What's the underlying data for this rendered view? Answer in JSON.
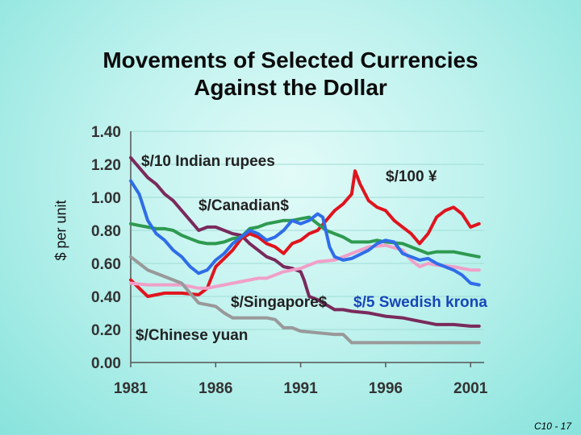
{
  "slide": {
    "title_line1": "Movements of Selected Currencies",
    "title_line2": "Against the Dollar",
    "footer": "C10 - 17"
  },
  "chart_data": {
    "type": "line",
    "ylabel": "$ per unit",
    "xlim": [
      1981,
      2001.8
    ],
    "ylim": [
      0.0,
      1.4
    ],
    "x_ticks": [
      "1981",
      "1986",
      "1991",
      "1996",
      "2001"
    ],
    "x_tick_values": [
      1981,
      1986,
      1991,
      1996,
      2001
    ],
    "y_ticks": [
      "0.00",
      "0.20",
      "0.40",
      "0.60",
      "0.80",
      "1.00",
      "1.20",
      "1.40"
    ],
    "y_tick_values": [
      0,
      0.2,
      0.4,
      0.6,
      0.8,
      1.0,
      1.2,
      1.4
    ],
    "grid": true,
    "series": [
      {
        "name": "$/10 Indian rupees",
        "color": "#7a2a5c",
        "x": [
          1981,
          1981.5,
          1982,
          1982.5,
          1983,
          1983.5,
          1984,
          1984.5,
          1985,
          1985.5,
          1986,
          1986.5,
          1987,
          1987.5,
          1988,
          1988.5,
          1989,
          1989.5,
          1990,
          1990.5,
          1991,
          1991.2,
          1991.5,
          1992,
          1993,
          1993.5,
          1994,
          1995,
          1995.5,
          1996,
          1997,
          1998,
          1998.5,
          1999,
          2000,
          2001,
          2001.5
        ],
        "y": [
          1.24,
          1.18,
          1.12,
          1.08,
          1.02,
          0.98,
          0.92,
          0.86,
          0.8,
          0.82,
          0.82,
          0.8,
          0.78,
          0.77,
          0.72,
          0.68,
          0.64,
          0.62,
          0.58,
          0.57,
          0.55,
          0.5,
          0.4,
          0.38,
          0.32,
          0.32,
          0.31,
          0.3,
          0.29,
          0.28,
          0.27,
          0.25,
          0.24,
          0.23,
          0.23,
          0.22,
          0.22
        ]
      },
      {
        "name": "$/100 ¥",
        "color": "#e0141e",
        "x": [
          1981,
          1981.5,
          1982,
          1983,
          1984,
          1985,
          1985.5,
          1986,
          1986.5,
          1987,
          1987.5,
          1988,
          1988.5,
          1989,
          1989.5,
          1990,
          1990.5,
          1991,
          1991.5,
          1992,
          1992.5,
          1993,
          1993.5,
          1994,
          1994.2,
          1994.5,
          1995,
          1995.5,
          1996,
          1996.5,
          1997,
          1997.5,
          1998,
          1998.5,
          1999,
          1999.5,
          2000,
          2000.5,
          2001,
          2001.5
        ],
        "y": [
          0.5,
          0.45,
          0.4,
          0.42,
          0.42,
          0.41,
          0.45,
          0.58,
          0.63,
          0.68,
          0.75,
          0.78,
          0.76,
          0.72,
          0.7,
          0.66,
          0.72,
          0.74,
          0.78,
          0.8,
          0.86,
          0.92,
          0.96,
          1.02,
          1.16,
          1.08,
          0.98,
          0.94,
          0.92,
          0.86,
          0.82,
          0.78,
          0.72,
          0.78,
          0.88,
          0.92,
          0.94,
          0.9,
          0.82,
          0.84
        ]
      },
      {
        "name": "$/Canadian$",
        "color": "#2e9a50",
        "x": [
          1981,
          1981.5,
          1982,
          1982.5,
          1983,
          1983.5,
          1984,
          1984.5,
          1985,
          1985.5,
          1986,
          1986.5,
          1987,
          1987.5,
          1988,
          1988.5,
          1989,
          1989.5,
          1990,
          1990.5,
          1991,
          1991.5,
          1992,
          1992.5,
          1993,
          1993.5,
          1994,
          1995,
          1995.5,
          1996,
          1997,
          1998,
          1998.5,
          1999,
          2000,
          2001,
          2001.5
        ],
        "y": [
          0.84,
          0.83,
          0.82,
          0.81,
          0.81,
          0.8,
          0.77,
          0.75,
          0.73,
          0.72,
          0.72,
          0.73,
          0.75,
          0.76,
          0.81,
          0.82,
          0.84,
          0.85,
          0.86,
          0.86,
          0.87,
          0.88,
          0.84,
          0.8,
          0.78,
          0.76,
          0.73,
          0.73,
          0.74,
          0.73,
          0.72,
          0.68,
          0.66,
          0.67,
          0.67,
          0.65,
          0.64
        ]
      },
      {
        "name": "$/Singapore$",
        "color": "#f0a0c8",
        "x": [
          1981,
          1982,
          1983,
          1984,
          1985,
          1985.5,
          1986,
          1987,
          1988,
          1988.5,
          1989,
          1990,
          1991,
          1992,
          1993,
          1994,
          1995,
          1996,
          1997,
          1997.5,
          1998,
          1998.5,
          1999,
          2000,
          2001,
          2001.5
        ],
        "y": [
          0.48,
          0.47,
          0.47,
          0.47,
          0.45,
          0.45,
          0.46,
          0.48,
          0.5,
          0.51,
          0.51,
          0.55,
          0.57,
          0.61,
          0.62,
          0.66,
          0.7,
          0.71,
          0.68,
          0.62,
          0.58,
          0.6,
          0.59,
          0.58,
          0.56,
          0.56
        ]
      },
      {
        "name": "$/5 Swedish krona",
        "color": "#2f6de8",
        "x": [
          1981,
          1981.5,
          1982,
          1982.5,
          1983,
          1983.5,
          1984,
          1984.5,
          1985,
          1985.5,
          1986,
          1986.5,
          1987,
          1987.5,
          1988,
          1988.5,
          1989,
          1989.5,
          1990,
          1990.5,
          1991,
          1991.5,
          1992,
          1992.3,
          1992.7,
          1993,
          1993.5,
          1994,
          1995,
          1995.5,
          1996,
          1996.5,
          1997,
          1997.5,
          1998,
          1998.5,
          1999,
          1999.5,
          2000,
          2000.5,
          2001,
          2001.5
        ],
        "y": [
          1.1,
          1.02,
          0.86,
          0.78,
          0.74,
          0.68,
          0.64,
          0.58,
          0.54,
          0.56,
          0.62,
          0.66,
          0.72,
          0.76,
          0.8,
          0.78,
          0.74,
          0.76,
          0.8,
          0.86,
          0.84,
          0.86,
          0.9,
          0.88,
          0.7,
          0.64,
          0.62,
          0.63,
          0.68,
          0.72,
          0.74,
          0.73,
          0.66,
          0.64,
          0.62,
          0.63,
          0.6,
          0.58,
          0.56,
          0.53,
          0.48,
          0.47
        ]
      },
      {
        "name": "$/Chinese yuan",
        "color": "#999999",
        "x": [
          1981,
          1981.5,
          1982,
          1983,
          1984,
          1984.5,
          1985,
          1986,
          1986.5,
          1987,
          1988,
          1989,
          1989.5,
          1990,
          1990.5,
          1991,
          1992,
          1993,
          1993.5,
          1994,
          1995,
          1996,
          1997,
          1998,
          1999,
          2000,
          2001,
          2001.5
        ],
        "y": [
          0.64,
          0.6,
          0.56,
          0.52,
          0.48,
          0.42,
          0.36,
          0.34,
          0.3,
          0.27,
          0.27,
          0.27,
          0.26,
          0.21,
          0.21,
          0.19,
          0.18,
          0.17,
          0.17,
          0.12,
          0.12,
          0.12,
          0.12,
          0.12,
          0.12,
          0.12,
          0.12,
          0.12
        ]
      }
    ],
    "annotations": [
      {
        "text": "$/10 Indian rupees",
        "series": 0
      },
      {
        "text": "$/100 ¥",
        "series": 1
      },
      {
        "text": "$/Canadian$",
        "series": 2
      },
      {
        "text": "$/Singapore$",
        "series": 3
      },
      {
        "text": "$/5 Swedish krona",
        "series": 4
      },
      {
        "text": "$/Chinese yuan",
        "series": 5
      }
    ]
  }
}
